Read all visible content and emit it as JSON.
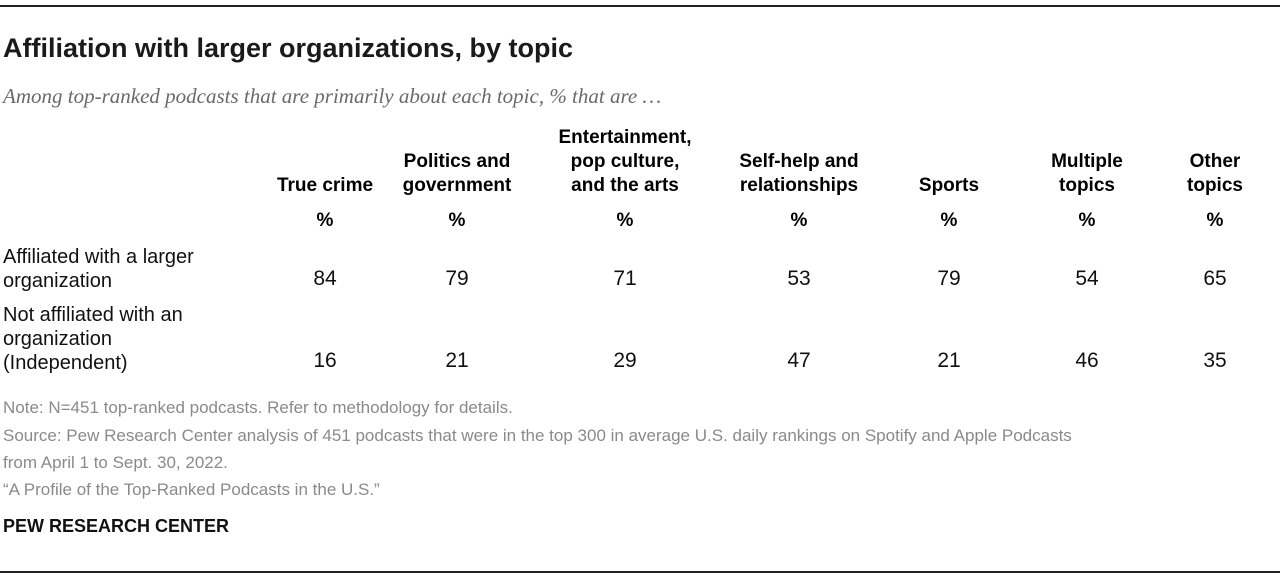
{
  "title": "Affiliation with larger organizations, by topic",
  "subtitle": "Among top-ranked podcasts that are primarily about each topic, % that are …",
  "unit_symbol": "%",
  "chart_data": {
    "type": "table",
    "columns": [
      "True crime",
      "Politics and\ngovernment",
      "Entertainment,\npop culture,\nand the arts",
      "Self-help and\nrelationships",
      "Sports",
      "Multiple\ntopics",
      "Other\ntopics"
    ],
    "rows": [
      {
        "label": "Affiliated with a larger\norganization",
        "values": [
          84,
          79,
          71,
          53,
          79,
          54,
          65
        ]
      },
      {
        "label": "Not affiliated with an\norganization\n(Independent)",
        "values": [
          16,
          21,
          29,
          47,
          21,
          46,
          35
        ]
      }
    ]
  },
  "notes": [
    "Note: N=451 top-ranked podcasts. Refer to methodology for details.",
    "Source: Pew Research Center analysis of 451 podcasts that were in the top 300 in average U.S. daily rankings on Spotify and Apple Podcasts",
    "from April 1 to Sept. 30, 2022.",
    "“A Profile of the Top-Ranked Podcasts in the U.S.”"
  ],
  "brand": "PEW RESEARCH CENTER"
}
